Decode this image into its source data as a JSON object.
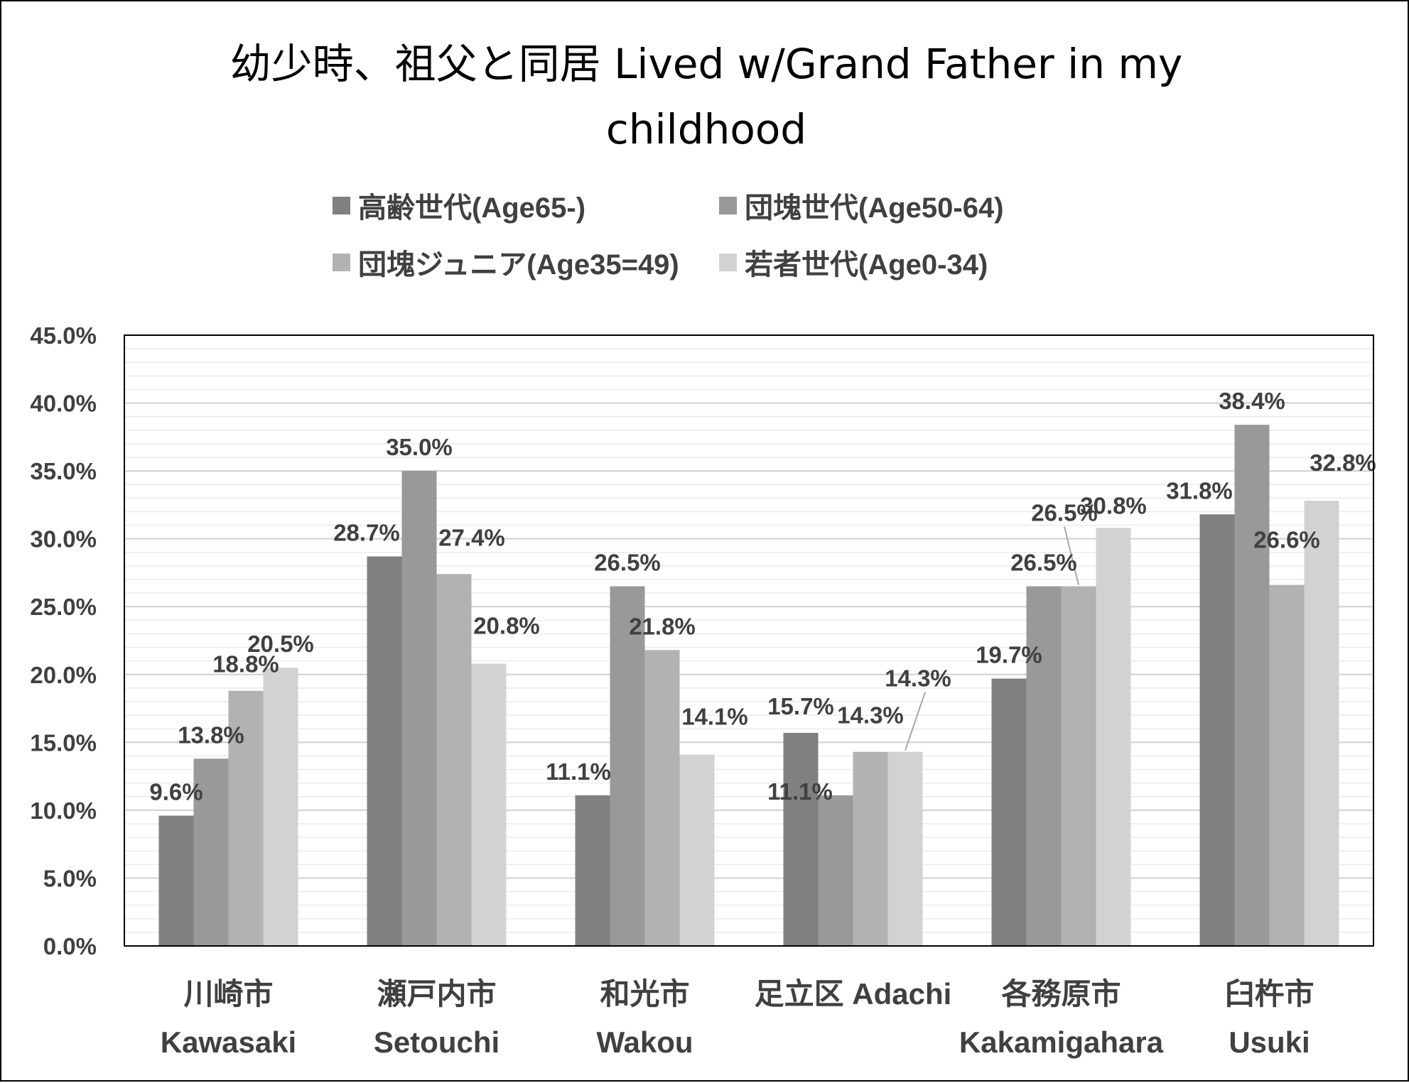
{
  "chart_data": {
    "type": "bar",
    "title_line1": "幼少時、祖父と同居 Lived w/Grand Father in my",
    "title_line2": "childhood",
    "xlabel": "",
    "ylabel": "",
    "ylim": [
      0,
      45
    ],
    "y_ticks": [
      "0.0%",
      "5.0%",
      "10.0%",
      "15.0%",
      "20.0%",
      "25.0%",
      "30.0%",
      "35.0%",
      "40.0%",
      "45.0%"
    ],
    "categories": [
      [
        "川崎市",
        "Kawasaki"
      ],
      [
        "瀬戸内市",
        "Setouchi"
      ],
      [
        "和光市",
        "Wakou"
      ],
      [
        "足立区 Adachi",
        ""
      ],
      [
        "各務原市",
        "Kakamigahara"
      ],
      [
        "臼杵市",
        "Usuki"
      ]
    ],
    "series": [
      {
        "name": "高齢世代(Age65-)",
        "color": "#808080",
        "values": [
          9.6,
          28.7,
          11.1,
          15.7,
          19.7,
          31.8
        ],
        "labels": [
          "9.6%",
          "28.7%",
          "11.1%",
          "15.7%",
          "19.7%",
          "31.8%"
        ]
      },
      {
        "name": "団塊世代(Age50-64)",
        "color": "#999999",
        "values": [
          13.8,
          35.0,
          26.5,
          11.1,
          26.5,
          38.4
        ],
        "labels": [
          "13.8%",
          "35.0%",
          "26.5%",
          "11.1%",
          "26.5%",
          "38.4%"
        ]
      },
      {
        "name": "団塊ジュニア(Age35=49)",
        "color": "#b2b2b2",
        "values": [
          18.8,
          27.4,
          21.8,
          14.3,
          26.5,
          26.6
        ],
        "labels": [
          "18.8%",
          "27.4%",
          "21.8%",
          "14.3%",
          "26.5%",
          "26.6%"
        ]
      },
      {
        "name": "若者世代(Age0-34)",
        "color": "#d2d2d2",
        "values": [
          20.5,
          20.8,
          14.1,
          14.3,
          30.8,
          32.8
        ],
        "labels": [
          "20.5%",
          "20.8%",
          "14.1%",
          "14.3%",
          "30.8%",
          "32.8%"
        ]
      }
    ],
    "grid": true,
    "legend_position": "top"
  }
}
